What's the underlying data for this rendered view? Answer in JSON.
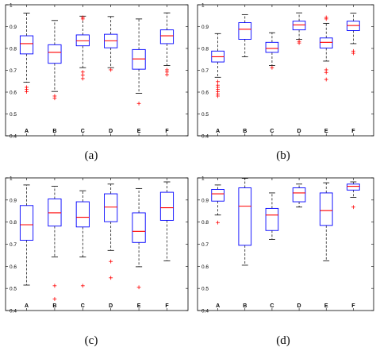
{
  "figure": {
    "panels": [
      "(a)",
      "(b)",
      "(c)",
      "(d)"
    ]
  },
  "chart_data": [
    {
      "type": "box",
      "title": "",
      "xlabel": "",
      "ylabel": "",
      "caption": "(a)",
      "categories": [
        "A",
        "B",
        "C",
        "D",
        "E",
        "F"
      ],
      "ylim": [
        0.4,
        1.0
      ],
      "yticks": [
        "0.4",
        "0.5",
        "0.6",
        "0.7",
        "0.8",
        "0.9",
        "1"
      ],
      "grid": false,
      "colors": {
        "box": "#0000ff",
        "median": "#ff0000",
        "whisker": "#000000",
        "outlier": "#ff0000"
      },
      "boxes": [
        {
          "q1": 0.775,
          "median": 0.822,
          "q3": 0.858,
          "whisker_low": 0.645,
          "whisker_high": 0.962,
          "outliers": [
            0.622,
            0.612,
            0.602
          ]
        },
        {
          "q1": 0.732,
          "median": 0.782,
          "q3": 0.817,
          "whisker_low": 0.603,
          "whisker_high": 0.928,
          "outliers": [
            0.582,
            0.572
          ]
        },
        {
          "q1": 0.812,
          "median": 0.835,
          "q3": 0.862,
          "whisker_low": 0.712,
          "whisker_high": 0.948,
          "outliers": [
            0.692,
            0.678,
            0.662,
            0.942,
            0.935
          ]
        },
        {
          "q1": 0.803,
          "median": 0.835,
          "q3": 0.865,
          "whisker_low": 0.712,
          "whisker_high": 0.946,
          "outliers": [
            0.702
          ]
        },
        {
          "q1": 0.705,
          "median": 0.752,
          "q3": 0.795,
          "whisker_low": 0.595,
          "whisker_high": 0.935,
          "outliers": [
            0.548
          ]
        },
        {
          "q1": 0.822,
          "median": 0.858,
          "q3": 0.885,
          "whisker_low": 0.722,
          "whisker_high": 0.963,
          "outliers": [
            0.702,
            0.692,
            0.68
          ]
        }
      ]
    },
    {
      "type": "box",
      "title": "",
      "xlabel": "",
      "ylabel": "",
      "caption": "(b)",
      "categories": [
        "A",
        "B",
        "C",
        "D",
        "E",
        "F"
      ],
      "ylim": [
        0.4,
        1.0
      ],
      "yticks": [
        "0.4",
        "0.5",
        "0.6",
        "0.7",
        "0.8",
        "0.9",
        "1"
      ],
      "grid": false,
      "colors": {
        "box": "#0000ff",
        "median": "#ff0000",
        "whisker": "#000000",
        "outlier": "#ff0000"
      },
      "boxes": [
        {
          "q1": 0.738,
          "median": 0.762,
          "q3": 0.788,
          "whisker_low": 0.668,
          "whisker_high": 0.868,
          "outliers": [
            0.648,
            0.632,
            0.622,
            0.612,
            0.602,
            0.592,
            0.582
          ]
        },
        {
          "q1": 0.842,
          "median": 0.888,
          "q3": 0.918,
          "whisker_low": 0.762,
          "whisker_high": 0.955,
          "outliers": []
        },
        {
          "q1": 0.782,
          "median": 0.8,
          "q3": 0.828,
          "whisker_low": 0.722,
          "whisker_high": 0.872,
          "outliers": [
            0.712
          ]
        },
        {
          "q1": 0.885,
          "median": 0.908,
          "q3": 0.925,
          "whisker_low": 0.842,
          "whisker_high": 0.963,
          "outliers": [
            0.832,
            0.825
          ]
        },
        {
          "q1": 0.802,
          "median": 0.828,
          "q3": 0.848,
          "whisker_low": 0.742,
          "whisker_high": 0.915,
          "outliers": [
            0.702,
            0.69,
            0.658,
            0.942,
            0.935
          ]
        },
        {
          "q1": 0.882,
          "median": 0.905,
          "q3": 0.925,
          "whisker_low": 0.822,
          "whisker_high": 0.962,
          "outliers": [
            0.788,
            0.778
          ]
        }
      ]
    },
    {
      "type": "box",
      "title": "",
      "xlabel": "",
      "ylabel": "",
      "caption": "(c)",
      "categories": [
        "A",
        "B",
        "C",
        "D",
        "E",
        "F"
      ],
      "ylim": [
        0.4,
        1.0
      ],
      "yticks": [
        "0.4",
        "0.5",
        "0.6",
        "0.7",
        "0.8",
        "0.9",
        "1"
      ],
      "grid": false,
      "colors": {
        "box": "#0000ff",
        "median": "#ff0000",
        "whisker": "#000000",
        "outlier": "#ff0000"
      },
      "boxes": [
        {
          "q1": 0.718,
          "median": 0.788,
          "q3": 0.875,
          "whisker_low": 0.515,
          "whisker_high": 0.968,
          "outliers": []
        },
        {
          "q1": 0.782,
          "median": 0.842,
          "q3": 0.905,
          "whisker_low": 0.642,
          "whisker_high": 0.962,
          "outliers": [
            0.512,
            0.452
          ]
        },
        {
          "q1": 0.778,
          "median": 0.822,
          "q3": 0.892,
          "whisker_low": 0.642,
          "whisker_high": 0.942,
          "outliers": [
            0.512
          ]
        },
        {
          "q1": 0.802,
          "median": 0.868,
          "q3": 0.928,
          "whisker_low": 0.672,
          "whisker_high": 0.972,
          "outliers": [
            0.622,
            0.548
          ]
        },
        {
          "q1": 0.708,
          "median": 0.758,
          "q3": 0.842,
          "whisker_low": 0.598,
          "whisker_high": 0.952,
          "outliers": [
            0.505
          ]
        },
        {
          "q1": 0.808,
          "median": 0.865,
          "q3": 0.935,
          "whisker_low": 0.625,
          "whisker_high": 0.982,
          "outliers": []
        }
      ]
    },
    {
      "type": "box",
      "title": "",
      "xlabel": "",
      "ylabel": "",
      "caption": "(d)",
      "categories": [
        "A",
        "B",
        "C",
        "D",
        "E",
        "F"
      ],
      "ylim": [
        0.4,
        1.0
      ],
      "yticks": [
        "0.4",
        "0.5",
        "0.6",
        "0.7",
        "0.8",
        "0.9",
        "1"
      ],
      "grid": false,
      "colors": {
        "box": "#0000ff",
        "median": "#ff0000",
        "whisker": "#000000",
        "outlier": "#ff0000"
      },
      "boxes": [
        {
          "q1": 0.895,
          "median": 0.928,
          "q3": 0.948,
          "whisker_low": 0.832,
          "whisker_high": 0.968,
          "outliers": [
            0.798
          ]
        },
        {
          "q1": 0.695,
          "median": 0.872,
          "q3": 0.955,
          "whisker_low": 0.605,
          "whisker_high": 0.998,
          "outliers": []
        },
        {
          "q1": 0.762,
          "median": 0.832,
          "q3": 0.862,
          "whisker_low": 0.722,
          "whisker_high": 0.932,
          "outliers": []
        },
        {
          "q1": 0.892,
          "median": 0.932,
          "q3": 0.955,
          "whisker_low": 0.868,
          "whisker_high": 0.972,
          "outliers": []
        },
        {
          "q1": 0.785,
          "median": 0.852,
          "q3": 0.932,
          "whisker_low": 0.625,
          "whisker_high": 0.978,
          "outliers": []
        },
        {
          "q1": 0.945,
          "median": 0.962,
          "q3": 0.972,
          "whisker_low": 0.912,
          "whisker_high": 0.982,
          "outliers": [
            0.868
          ]
        }
      ]
    }
  ]
}
